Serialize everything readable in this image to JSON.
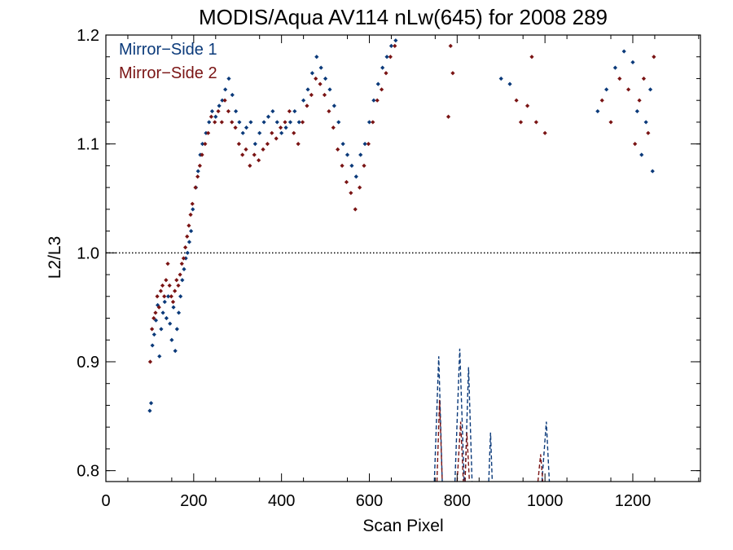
{
  "chart_data": {
    "type": "scatter",
    "title": "MODIS/Aqua AV114 nLw(645) for 2008 289",
    "xlabel": "Scan Pixel",
    "ylabel": "L2/L3",
    "xlim": [
      0,
      1354
    ],
    "ylim": [
      0.79,
      1.2
    ],
    "x_ticks": [
      0,
      200,
      400,
      600,
      800,
      1000,
      1200
    ],
    "x_tick_labels": [
      "0",
      "200",
      "400",
      "600",
      "800",
      "1000",
      "1200"
    ],
    "y_ticks": [
      0.8,
      0.9,
      1.0,
      1.1,
      1.2
    ],
    "y_tick_labels": [
      "0.8",
      "0.9",
      "1.0",
      "1.1",
      "1.2"
    ],
    "reference_line": {
      "y": 1.0,
      "style": "dotted",
      "color": "#000000"
    },
    "legend_position": "top-left",
    "series": [
      {
        "name": "Mirror−Side 1",
        "color": "#0b3a7a",
        "points": [
          [
            100,
            0.855
          ],
          [
            103,
            0.862
          ],
          [
            106,
            0.915
          ],
          [
            110,
            0.925
          ],
          [
            114,
            0.938
          ],
          [
            118,
            0.952
          ],
          [
            122,
            0.905
          ],
          [
            126,
            0.93
          ],
          [
            130,
            0.945
          ],
          [
            134,
            0.955
          ],
          [
            138,
            0.94
          ],
          [
            142,
            0.96
          ],
          [
            146,
            0.935
          ],
          [
            150,
            0.92
          ],
          [
            154,
            0.95
          ],
          [
            158,
            0.91
          ],
          [
            162,
            0.93
          ],
          [
            166,
            0.945
          ],
          [
            170,
            0.96
          ],
          [
            174,
            0.975
          ],
          [
            178,
            0.985
          ],
          [
            182,
            0.995
          ],
          [
            186,
            1.0
          ],
          [
            190,
            1.01
          ],
          [
            194,
            1.02
          ],
          [
            198,
            1.04
          ],
          [
            205,
            1.06
          ],
          [
            210,
            1.075
          ],
          [
            215,
            1.09
          ],
          [
            220,
            1.1
          ],
          [
            228,
            1.11
          ],
          [
            235,
            1.12
          ],
          [
            242,
            1.13
          ],
          [
            250,
            1.125
          ],
          [
            258,
            1.135
          ],
          [
            265,
            1.14
          ],
          [
            272,
            1.15
          ],
          [
            280,
            1.16
          ],
          [
            288,
            1.145
          ],
          [
            296,
            1.13
          ],
          [
            304,
            1.12
          ],
          [
            312,
            1.11
          ],
          [
            320,
            1.115
          ],
          [
            330,
            1.12
          ],
          [
            340,
            1.1
          ],
          [
            350,
            1.11
          ],
          [
            360,
            1.12
          ],
          [
            370,
            1.125
          ],
          [
            380,
            1.13
          ],
          [
            390,
            1.12
          ],
          [
            400,
            1.11
          ],
          [
            410,
            1.115
          ],
          [
            420,
            1.12
          ],
          [
            430,
            1.13
          ],
          [
            440,
            1.12
          ],
          [
            450,
            1.14
          ],
          [
            460,
            1.15
          ],
          [
            470,
            1.165
          ],
          [
            480,
            1.18
          ],
          [
            490,
            1.17
          ],
          [
            500,
            1.16
          ],
          [
            510,
            1.15
          ],
          [
            520,
            1.135
          ],
          [
            530,
            1.12
          ],
          [
            540,
            1.1
          ],
          [
            550,
            1.09
          ],
          [
            560,
            1.08
          ],
          [
            570,
            1.07
          ],
          [
            580,
            1.09
          ],
          [
            590,
            1.1
          ],
          [
            600,
            1.12
          ],
          [
            610,
            1.14
          ],
          [
            620,
            1.155
          ],
          [
            630,
            1.17
          ],
          [
            640,
            1.18
          ],
          [
            650,
            1.19
          ],
          [
            660,
            1.195
          ],
          [
            900,
            1.16
          ],
          [
            920,
            1.155
          ],
          [
            1120,
            1.13
          ],
          [
            1140,
            1.15
          ],
          [
            1160,
            1.17
          ],
          [
            1180,
            1.185
          ],
          [
            1200,
            1.175
          ],
          [
            1210,
            1.13
          ],
          [
            1220,
            1.09
          ],
          [
            1230,
            1.12
          ],
          [
            1240,
            1.15
          ],
          [
            1245,
            1.075
          ]
        ],
        "dashed_spikes": [
          [
            [
              748,
              0.79
            ],
            [
              758,
              0.905
            ],
            [
              766,
              0.79
            ]
          ],
          [
            [
              795,
              0.79
            ],
            [
              806,
              0.912
            ],
            [
              816,
              0.79
            ]
          ],
          [
            [
              818,
              0.79
            ],
            [
              826,
              0.895
            ],
            [
              834,
              0.79
            ]
          ],
          [
            [
              872,
              0.79
            ],
            [
              876,
              0.835
            ],
            [
              880,
              0.79
            ]
          ],
          [
            [
              993,
              0.79
            ],
            [
              1003,
              0.845
            ],
            [
              1010,
              0.79
            ]
          ]
        ]
      },
      {
        "name": "Mirror−Side 2",
        "color": "#7a1414",
        "points": [
          [
            101,
            0.9
          ],
          [
            105,
            0.93
          ],
          [
            109,
            0.94
          ],
          [
            113,
            0.945
          ],
          [
            117,
            0.96
          ],
          [
            121,
            0.95
          ],
          [
            125,
            0.965
          ],
          [
            129,
            0.97
          ],
          [
            133,
            0.96
          ],
          [
            137,
            0.975
          ],
          [
            141,
            0.99
          ],
          [
            145,
            0.97
          ],
          [
            149,
            0.96
          ],
          [
            153,
            0.955
          ],
          [
            157,
            0.965
          ],
          [
            161,
            0.975
          ],
          [
            165,
            0.97
          ],
          [
            169,
            0.98
          ],
          [
            173,
            0.99
          ],
          [
            177,
            0.995
          ],
          [
            181,
            1.005
          ],
          [
            185,
            1.015
          ],
          [
            189,
            1.025
          ],
          [
            193,
            1.035
          ],
          [
            197,
            1.045
          ],
          [
            204,
            1.06
          ],
          [
            209,
            1.07
          ],
          [
            214,
            1.08
          ],
          [
            219,
            1.09
          ],
          [
            226,
            1.1
          ],
          [
            233,
            1.11
          ],
          [
            240,
            1.125
          ],
          [
            248,
            1.12
          ],
          [
            256,
            1.13
          ],
          [
            264,
            1.12
          ],
          [
            271,
            1.14
          ],
          [
            279,
            1.13
          ],
          [
            287,
            1.12
          ],
          [
            295,
            1.115
          ],
          [
            303,
            1.1
          ],
          [
            311,
            1.09
          ],
          [
            319,
            1.095
          ],
          [
            328,
            1.08
          ],
          [
            338,
            1.09
          ],
          [
            348,
            1.085
          ],
          [
            358,
            1.095
          ],
          [
            368,
            1.1
          ],
          [
            378,
            1.11
          ],
          [
            388,
            1.105
          ],
          [
            398,
            1.115
          ],
          [
            408,
            1.12
          ],
          [
            418,
            1.13
          ],
          [
            428,
            1.11
          ],
          [
            438,
            1.1
          ],
          [
            448,
            1.12
          ],
          [
            458,
            1.135
          ],
          [
            468,
            1.145
          ],
          [
            478,
            1.16
          ],
          [
            488,
            1.155
          ],
          [
            498,
            1.145
          ],
          [
            508,
            1.13
          ],
          [
            518,
            1.115
          ],
          [
            528,
            1.095
          ],
          [
            538,
            1.08
          ],
          [
            548,
            1.065
          ],
          [
            558,
            1.055
          ],
          [
            568,
            1.04
          ],
          [
            578,
            1.06
          ],
          [
            588,
            1.08
          ],
          [
            598,
            1.1
          ],
          [
            608,
            1.12
          ],
          [
            618,
            1.14
          ],
          [
            628,
            1.15
          ],
          [
            638,
            1.165
          ],
          [
            648,
            1.18
          ],
          [
            658,
            1.19
          ],
          [
            780,
            1.125
          ],
          [
            785,
            1.19
          ],
          [
            790,
            1.165
          ],
          [
            935,
            1.14
          ],
          [
            945,
            1.12
          ],
          [
            960,
            1.135
          ],
          [
            970,
            1.18
          ],
          [
            980,
            1.12
          ],
          [
            1000,
            1.11
          ],
          [
            1130,
            1.14
          ],
          [
            1150,
            1.12
          ],
          [
            1170,
            1.16
          ],
          [
            1190,
            1.15
          ],
          [
            1205,
            1.1
          ],
          [
            1215,
            1.14
          ],
          [
            1225,
            1.16
          ],
          [
            1235,
            1.11
          ],
          [
            1248,
            1.18
          ]
        ],
        "dashed_spikes": [
          [
            [
              754,
              0.79
            ],
            [
              760,
              0.865
            ],
            [
              766,
              0.79
            ]
          ],
          [
            [
              800,
              0.79
            ],
            [
              808,
              0.845
            ],
            [
              814,
              0.79
            ]
          ],
          [
            [
              818,
              0.79
            ],
            [
              822,
              0.835
            ],
            [
              828,
              0.79
            ]
          ],
          [
            [
              984,
              0.79
            ],
            [
              990,
              0.815
            ],
            [
              995,
              0.79
            ]
          ]
        ]
      }
    ]
  }
}
